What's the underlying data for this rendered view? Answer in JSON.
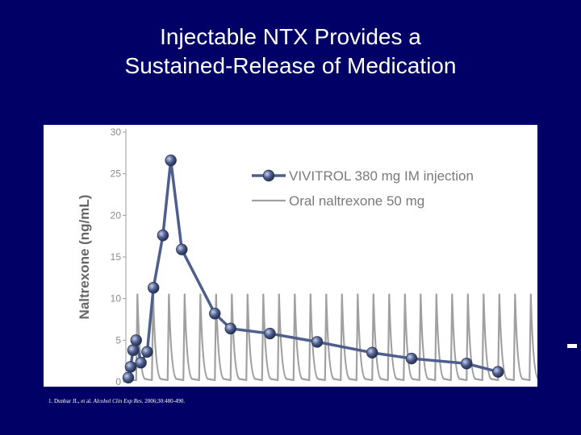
{
  "slide": {
    "title_line1": "Injectable NTX Provides a",
    "title_line2": "Sustained-Release of Medication",
    "citation_prefix": "1. Dunbar JL, et al.",
    "citation_journal": "Alcohol Clin Exp Res.",
    "citation_suffix": "2006;30:480-490."
  },
  "colors": {
    "background": "#000066",
    "vivitrol": "#4e5f8e",
    "oral": "#a0a0a0"
  },
  "chart_data": {
    "type": "line",
    "title": "",
    "xlabel": "",
    "ylabel": "Naltrexone (ng/mL)",
    "ylim": [
      0,
      30
    ],
    "yticks": [
      "0",
      "5",
      "10",
      "15",
      "20",
      "25",
      "30"
    ],
    "legend_position": "top-right",
    "grid": false,
    "series": [
      {
        "name": "VIVITROL 380 mg IM injection",
        "marker": "circle",
        "x": [
          0.0,
          0.15,
          0.3,
          0.5,
          0.8,
          1.2,
          1.6,
          2.2,
          2.7,
          3.4,
          5.5,
          6.5,
          9.0,
          12.0,
          15.5,
          18.0,
          21.5,
          23.5
        ],
        "y": [
          0.5,
          1.8,
          3.8,
          5.0,
          2.3,
          3.6,
          11.3,
          17.6,
          26.6,
          15.9,
          8.2,
          6.4,
          5.8,
          4.8,
          3.5,
          2.8,
          2.2,
          1.2
        ]
      },
      {
        "name": "Oral naltrexone 50 mg",
        "marker": "none",
        "dosing_interval": 1,
        "peak": 10.5,
        "trough": 0.2,
        "dose_count": 29,
        "first_dose": 0.5
      }
    ]
  }
}
